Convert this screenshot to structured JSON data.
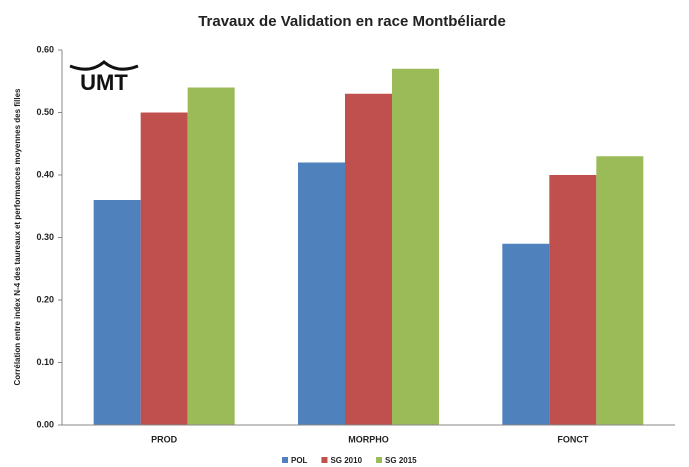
{
  "chart_data": {
    "type": "bar",
    "title": "Travaux de Validation en race Montbéliarde",
    "y_label": "Corrélation entre index N-4 des taureaux et performances moyennes des filles",
    "logo": "UMT",
    "categories": [
      "PROD",
      "MORPHO",
      "FONCT"
    ],
    "series": [
      {
        "name": "POL",
        "color": "#4f81bd",
        "values": [
          0.36,
          0.42,
          0.29
        ]
      },
      {
        "name": "SG 2010",
        "color": "#c0504d",
        "values": [
          0.5,
          0.53,
          0.4
        ]
      },
      {
        "name": "SG 2015",
        "color": "#9bbb59",
        "values": [
          0.54,
          0.57,
          0.43
        ]
      }
    ],
    "ylim": [
      0,
      0.6
    ],
    "yticks": [
      {
        "value": 0,
        "label": "0.00"
      },
      {
        "value": 0.1,
        "label": "0.10"
      },
      {
        "value": 0.2,
        "label": "0.20"
      },
      {
        "value": 0.3,
        "label": "0.30"
      },
      {
        "value": 0.4,
        "label": "0.40"
      },
      {
        "value": 0.5,
        "label": "0.50"
      },
      {
        "value": 0.6,
        "label": "0.60"
      }
    ],
    "grid": false,
    "legend": "bottom"
  }
}
